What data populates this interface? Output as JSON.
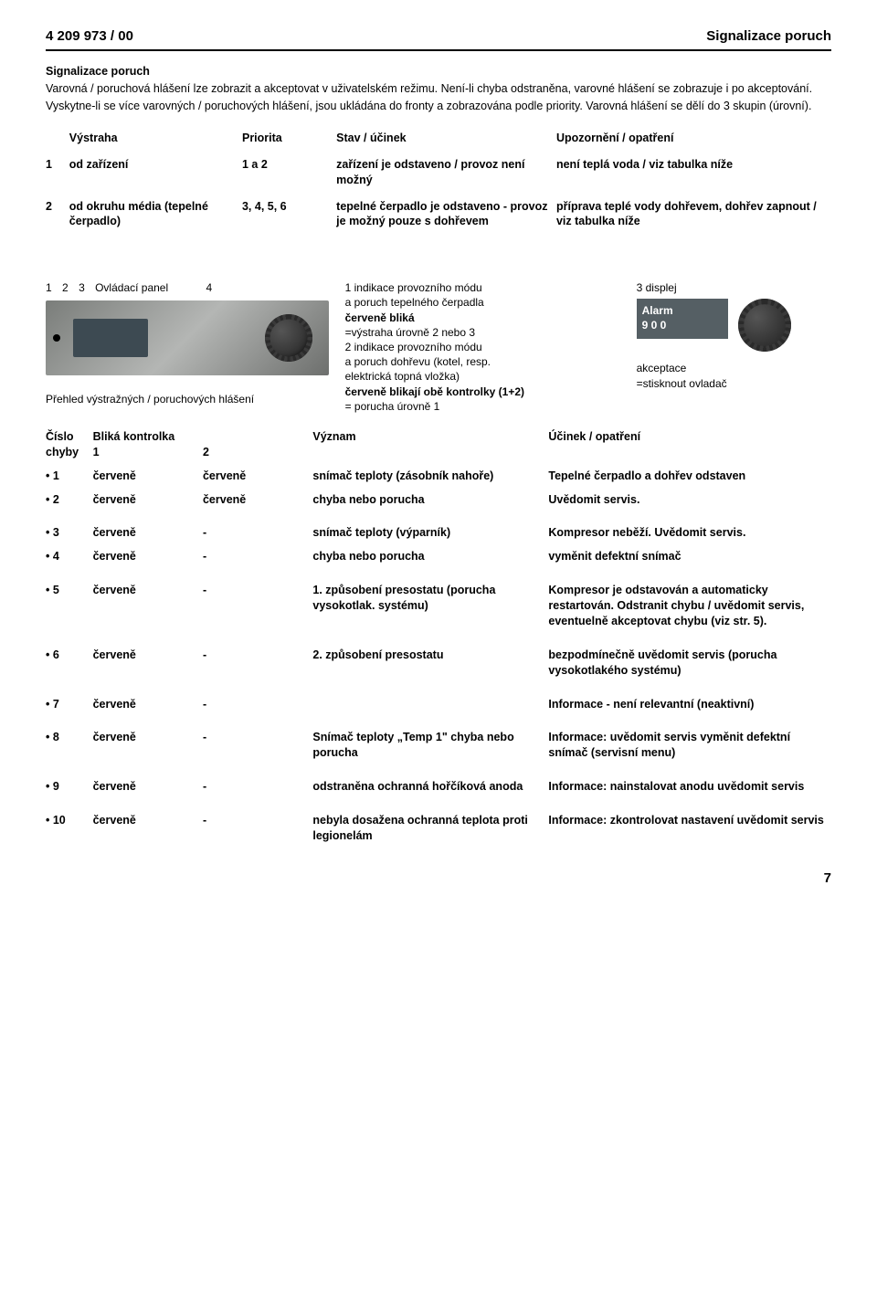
{
  "header": {
    "left": "4 209 973 / 00",
    "right": "Signalizace poruch"
  },
  "intro": {
    "title": "Signalizace poruch",
    "p1": "Varovná / poruchová hlášení lze zobrazit a akceptovat v uživatelském režimu. Není-li chyba odstraněna, varovné hlášení se zobrazuje i po akceptování.",
    "p2": "Vyskytne-li se více varovných / poruchových hlášení, jsou ukládána do fronty a zobrazována podle priority. Varovná hlášení se dělí do 3 skupin (úrovní)."
  },
  "tbl1_head": {
    "c0": "",
    "c1": "Výstraha",
    "c2": "Priorita",
    "c3": "Stav / účinek",
    "c4": "Upozornění / opatření"
  },
  "tbl1_rows": [
    {
      "n": "1",
      "vyst": "od zařízení",
      "pri": "1 a 2",
      "stav": "zařízení je odstaveno / provoz není možný",
      "upoz": "není teplá voda / viz tabulka níže"
    },
    {
      "n": "2",
      "vyst": "od okruhu média (tepelné čerpadlo)",
      "pri": "3, 4, 5, 6",
      "stav": "tepelné čerpadlo je odstaveno - provoz je možný pouze s dohřevem",
      "upoz": "příprava teplé vody dohřevem, dohřev zapnout / viz tabulka níže"
    }
  ],
  "panel": {
    "labels": {
      "l1": "1",
      "l2": "2",
      "l3": "3",
      "ltext": "Ovládací panel",
      "l4": "4"
    },
    "mid": {
      "l1": "1 indikace provozního módu",
      "l2": "   a poruch tepelného čerpadla",
      "l3": "červeně bliká",
      "l4": "=výstraha úrovně 2 nebo 3",
      "l5": "2 indikace provozního módu",
      "l6": "   a poruch dohřevu (kotel, resp.",
      "l7": "   elektrická topná vložka)",
      "l8": "červeně blikají obě kontrolky (1+2)",
      "l9": "= porucha úrovně 1"
    },
    "right": {
      "lbl3": "3 displej",
      "alarm1": "Alarm",
      "alarm2": "9  0  0",
      "akc1": "akceptace",
      "akc2": "=stisknout ovladač"
    },
    "overview_title": "Přehled výstražných / poruchových hlášení"
  },
  "tbl2_head": {
    "c1a": "Číslo",
    "c1b": "chyby",
    "c2": "Bliká kontrolka",
    "s1": "1",
    "s2": "2",
    "c3": "Význam",
    "c4": "Účinek / opatření"
  },
  "tbl2_rows": [
    {
      "n": "• 1",
      "k1": "červeně",
      "k2": "červeně",
      "vyz": "snímač teploty (zásobník nahoře)",
      "uci": "Tepelné čerpadlo a dohřev odstaven"
    },
    {
      "n": "• 2",
      "k1": "červeně",
      "k2": "červeně",
      "vyz": "chyba nebo porucha",
      "uci": "Uvědomit servis."
    },
    {
      "n": "• 3",
      "k1": "červeně",
      "k2": "-",
      "vyz": "snímač teploty (výparník)",
      "uci": "Kompresor neběží. Uvědomit servis.",
      "gap": true
    },
    {
      "n": "• 4",
      "k1": "červeně",
      "k2": "-",
      "vyz": "chyba nebo porucha",
      "uci": "vyměnit defektní snímač"
    },
    {
      "n": "• 5",
      "k1": "červeně",
      "k2": "-",
      "vyz": "1. způsobení presostatu (porucha vysokotlak. systému)",
      "uci": "Kompresor je odstavován a automaticky restartován. Odstranit chybu / uvědomit servis, eventuelně akceptovat chybu (viz str. 5).",
      "gap": true
    },
    {
      "n": "• 6",
      "k1": "červeně",
      "k2": "-",
      "vyz": "2. způsobení presostatu",
      "uci": "bezpodmínečně uvědomit servis (porucha vysokotlakého systému)",
      "gap": true
    },
    {
      "n": "• 7",
      "k1": "červeně",
      "k2": "-",
      "vyz": "",
      "uci": "Informace - není relevantní (neaktivní)",
      "gap": true
    },
    {
      "n": "• 8",
      "k1": "červeně",
      "k2": "-",
      "vyz": "Snímač teploty „Temp 1\" chyba nebo porucha",
      "uci": "Informace: uvědomit servis vyměnit defektní snímač (servisní menu)",
      "gap": true
    },
    {
      "n": "• 9",
      "k1": "červeně",
      "k2": "-",
      "vyz": "odstraněna ochranná hořčíková anoda",
      "uci": "Informace: nainstalovat anodu uvědomit servis",
      "gap": true
    },
    {
      "n": "• 10",
      "k1": "červeně",
      "k2": "-",
      "vyz": "nebyla dosažena ochranná teplota proti legionelám",
      "uci": "Informace: zkontrolovat nastavení uvědomit servis",
      "gap": true
    }
  ],
  "page_num": "7"
}
